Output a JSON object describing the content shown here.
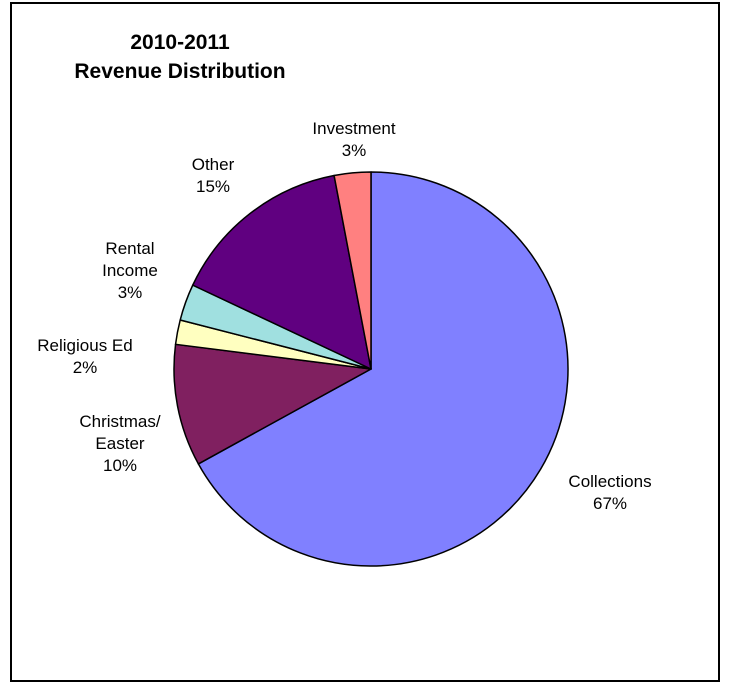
{
  "chart_data": {
    "type": "pie",
    "title": [
      "2010-2011",
      "Revenue Distribution"
    ],
    "slices": [
      {
        "label": [
          "Collections"
        ],
        "pct_label": "67%",
        "value": 67,
        "color": "#8080FF"
      },
      {
        "label": [
          "Christmas/",
          "Easter"
        ],
        "pct_label": "10%",
        "value": 10,
        "color": "#802060"
      },
      {
        "label": [
          "Religious Ed"
        ],
        "pct_label": "2%",
        "value": 2,
        "color": "#FFFFC0"
      },
      {
        "label": [
          "Rental",
          "Income"
        ],
        "pct_label": "3%",
        "value": 3,
        "color": "#A0E0E0"
      },
      {
        "label": [
          "Other"
        ],
        "pct_label": "15%",
        "value": 15,
        "color": "#600080"
      },
      {
        "label": [
          "Investment"
        ],
        "pct_label": "3%",
        "value": 3,
        "color": "#FF8080"
      }
    ],
    "start_angle": "12 o'clock",
    "direction": "clockwise",
    "legend": "none"
  }
}
